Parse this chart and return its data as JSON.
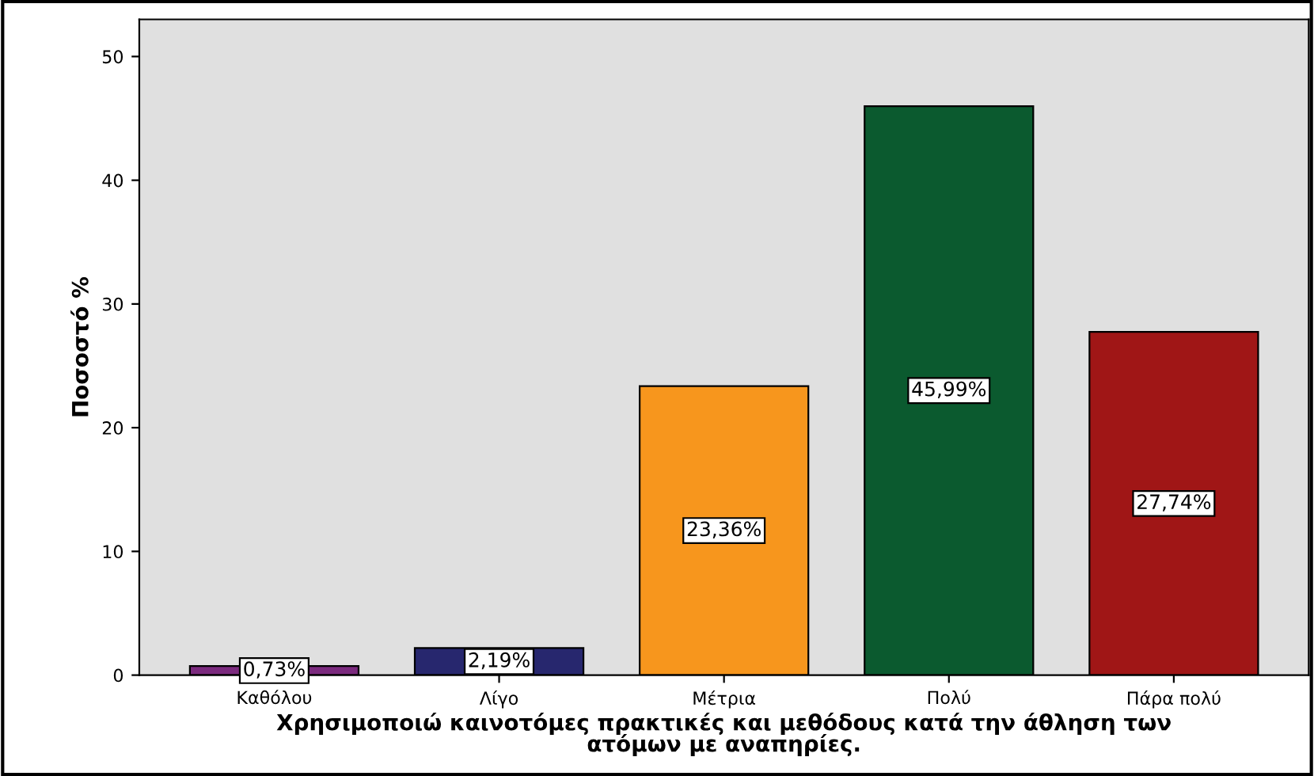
{
  "chart_data": {
    "type": "bar",
    "xlabel": "Χρησιμοποιώ καινοτόμες πρακτικές και μεθόδους κατά την άθληση των\nατόμων με αναπηρίες.",
    "ylabel": "Ποσοστό %",
    "categories": [
      "Καθόλου",
      "Λίγο",
      "Μέτρια",
      "Πολύ",
      "Πάρα πολύ"
    ],
    "values": [
      0.73,
      2.19,
      23.36,
      45.99,
      27.74
    ],
    "value_labels": [
      "0,73%",
      "2,19%",
      "23,36%",
      "45,99%",
      "27,74%"
    ],
    "colors": [
      "#7b2a7e",
      "#27276e",
      "#f7961d",
      "#0b5a2f",
      "#a01616"
    ],
    "ylim": [
      0,
      53
    ],
    "yticks": [
      0,
      10,
      20,
      30,
      40,
      50
    ],
    "grid": false,
    "legend": false
  }
}
